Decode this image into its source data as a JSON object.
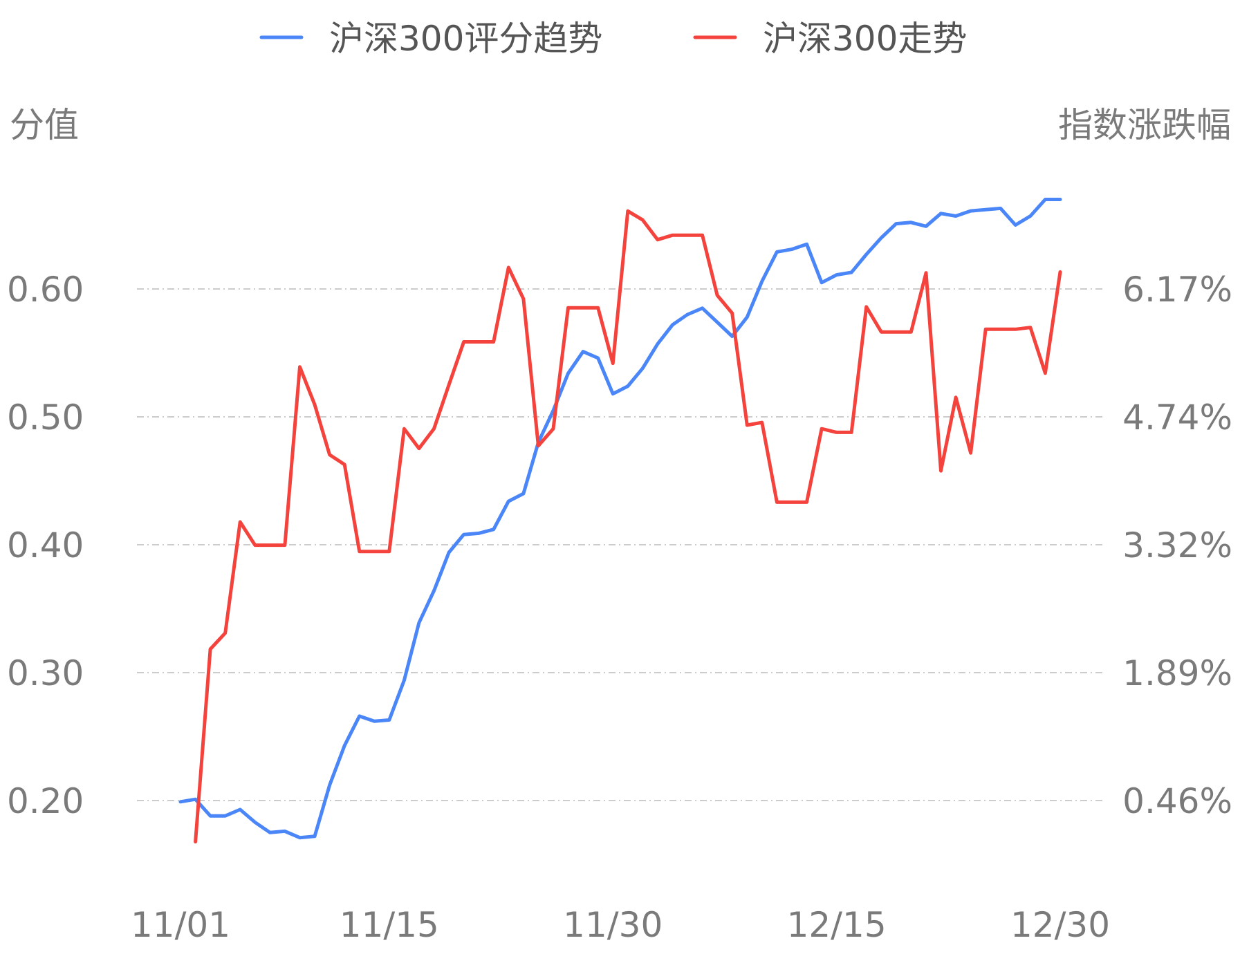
{
  "chart_data": {
    "type": "line",
    "legend": {
      "position": "top",
      "items": [
        {
          "label": "沪深300评分趋势",
          "color": "#4a86f7"
        },
        {
          "label": "沪深300走势",
          "color": "#f4433c"
        }
      ]
    },
    "y_left_title": "分值",
    "y_right_title": "指数涨跌幅",
    "y_left_ticks": [
      "0.60",
      "0.50",
      "0.40",
      "0.30",
      "0.20"
    ],
    "y_right_ticks": [
      "6.17%",
      "4.74%",
      "3.32%",
      "1.89%",
      "0.46%"
    ],
    "y_left_tick_values": [
      0.6,
      0.5,
      0.4,
      0.3,
      0.2
    ],
    "y_left_range": [
      0.13,
      0.68
    ],
    "y_right_range": [
      -0.16,
      7.0
    ],
    "x_tick_labels": [
      "11/01",
      "11/15",
      "11/30",
      "12/15",
      "12/30"
    ],
    "x_tick_index": [
      0,
      14,
      29,
      44,
      59
    ],
    "x_count": 60,
    "grid": "horizontal dash-dot",
    "series": [
      {
        "name": "沪深300评分趋势",
        "axis": "left",
        "color": "#4a86f7",
        "x_start": 0,
        "values": [
          0.199,
          0.201,
          0.188,
          0.188,
          0.193,
          0.183,
          0.175,
          0.176,
          0.171,
          0.172,
          0.212,
          0.243,
          0.266,
          0.262,
          0.263,
          0.294,
          0.339,
          0.364,
          0.394,
          0.408,
          0.409,
          0.412,
          0.434,
          0.44,
          0.48,
          0.505,
          0.534,
          0.551,
          0.546,
          0.518,
          0.524,
          0.538,
          0.557,
          0.572,
          0.58,
          0.585,
          0.574,
          0.563,
          0.578,
          0.606,
          0.629,
          0.631,
          0.635,
          0.605,
          0.611,
          0.613,
          0.627,
          0.64,
          0.651,
          0.652,
          0.649,
          0.659,
          0.657,
          0.661,
          0.662,
          0.663,
          0.65,
          0.657,
          0.67,
          0.67
        ]
      },
      {
        "name": "沪深300走势",
        "axis": "right",
        "color": "#f4433c",
        "x_start": 1,
        "values": [
          0.0,
          2.15,
          2.33,
          3.57,
          3.31,
          3.31,
          3.31,
          5.3,
          4.88,
          4.32,
          4.21,
          3.24,
          3.24,
          3.24,
          4.61,
          4.39,
          4.61,
          5.1,
          5.58,
          5.58,
          5.58,
          6.41,
          6.06,
          4.42,
          4.61,
          5.96,
          5.96,
          5.96,
          5.34,
          7.04,
          6.94,
          6.72,
          6.77,
          6.77,
          6.77,
          6.1,
          5.9,
          4.65,
          4.68,
          3.79,
          3.79,
          3.79,
          4.61,
          4.57,
          4.57,
          5.97,
          5.69,
          5.69,
          5.69,
          6.35,
          4.14,
          4.96,
          4.34,
          5.72,
          5.72,
          5.72,
          5.74,
          5.23,
          6.36
        ]
      }
    ]
  }
}
